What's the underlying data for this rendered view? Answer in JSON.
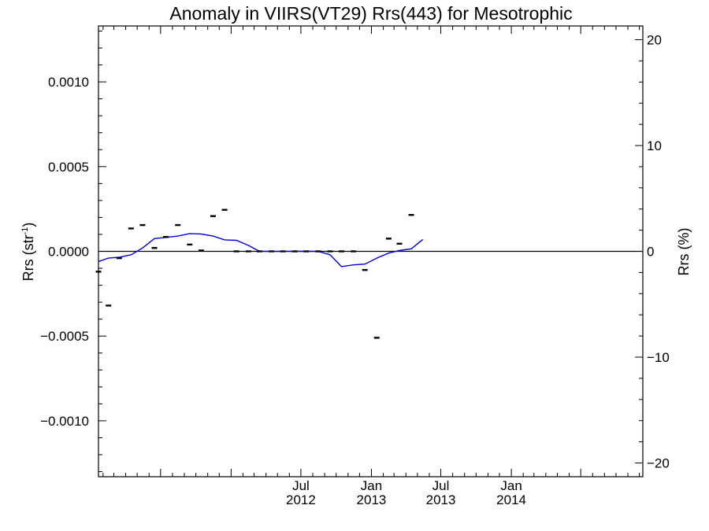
{
  "chart_data": {
    "type": "line",
    "title": "Anomaly in VIIRS(VT29) Rrs(443) for Mesotrophic",
    "ylabel": "Rrs (str",
    "ylabel_sup": "-1",
    "ylabel_end": ")",
    "y2label": "Rrs (%)",
    "xlim": [
      "2011-01-20",
      "2014-12-10"
    ],
    "ylim": [
      -0.00133,
      0.00133
    ],
    "y2lim": [
      -21.3,
      21.3
    ],
    "yticks": [
      {
        "value": 0.001,
        "label": "0.0010"
      },
      {
        "value": 0.0005,
        "label": "0.0005"
      },
      {
        "value": 0,
        "label": "0.0000"
      },
      {
        "value": -0.0005,
        "label": "−0.0005"
      },
      {
        "value": -0.001,
        "label": "−0.0010"
      }
    ],
    "y2ticks": [
      {
        "value": 20,
        "label": "20"
      },
      {
        "value": 10,
        "label": "10"
      },
      {
        "value": 0,
        "label": "0"
      },
      {
        "value": -10,
        "label": "−10"
      },
      {
        "value": -20,
        "label": "−20"
      }
    ],
    "xticks": [
      {
        "date": "2012-07-01",
        "month": "Jul",
        "year": "2012"
      },
      {
        "date": "2013-01-01",
        "month": "Jan",
        "year": "2013"
      },
      {
        "date": "2013-07-01",
        "month": "Jul",
        "year": "2013"
      },
      {
        "date": "2014-01-01",
        "month": "Jan",
        "year": "2014"
      }
    ],
    "zero_line": true,
    "grid": false,
    "series": [
      {
        "style": "line",
        "color": "#0000dd",
        "points": [
          {
            "x": "2011-01-20",
            "y": -6e-05
          },
          {
            "x": "2011-02-15",
            "y": -4e-05
          },
          {
            "x": "2011-03-15",
            "y": -3.5e-05
          },
          {
            "x": "2011-04-15",
            "y": -2e-05
          },
          {
            "x": "2011-05-15",
            "y": 2e-05
          },
          {
            "x": "2011-06-15",
            "y": 7.5e-05
          },
          {
            "x": "2011-07-15",
            "y": 8.2e-05
          },
          {
            "x": "2011-08-15",
            "y": 9e-05
          },
          {
            "x": "2011-09-15",
            "y": 0.000105
          },
          {
            "x": "2011-10-15",
            "y": 0.000102
          },
          {
            "x": "2011-11-15",
            "y": 9e-05
          },
          {
            "x": "2011-12-15",
            "y": 6.8e-05
          },
          {
            "x": "2012-01-15",
            "y": 6.5e-05
          },
          {
            "x": "2012-02-15",
            "y": 3.5e-05
          },
          {
            "x": "2012-03-15",
            "y": 0
          },
          {
            "x": "2012-04-15",
            "y": 0
          },
          {
            "x": "2012-05-15",
            "y": 0
          },
          {
            "x": "2012-06-15",
            "y": 0
          },
          {
            "x": "2012-07-15",
            "y": 0
          },
          {
            "x": "2012-08-15",
            "y": 0
          },
          {
            "x": "2012-09-15",
            "y": -2e-05
          },
          {
            "x": "2012-10-15",
            "y": -9e-05
          },
          {
            "x": "2012-11-15",
            "y": -8e-05
          },
          {
            "x": "2012-12-15",
            "y": -7.5e-05
          },
          {
            "x": "2013-01-15",
            "y": -4e-05
          },
          {
            "x": "2013-02-15",
            "y": -1e-05
          },
          {
            "x": "2013-03-15",
            "y": 5e-06
          },
          {
            "x": "2013-04-15",
            "y": 1.5e-05
          },
          {
            "x": "2013-05-15",
            "y": 7e-05
          }
        ]
      },
      {
        "style": "marker",
        "color": "#000000",
        "points": [
          {
            "x": "2011-01-20",
            "y": -0.00012
          },
          {
            "x": "2011-02-15",
            "y": -0.00032
          },
          {
            "x": "2011-03-15",
            "y": -4e-05
          },
          {
            "x": "2011-04-15",
            "y": 0.000135
          },
          {
            "x": "2011-05-15",
            "y": 0.000155
          },
          {
            "x": "2011-06-15",
            "y": 2e-05
          },
          {
            "x": "2011-07-15",
            "y": 8.5e-05
          },
          {
            "x": "2011-08-15",
            "y": 0.000155
          },
          {
            "x": "2011-09-15",
            "y": 4e-05
          },
          {
            "x": "2011-10-15",
            "y": 5e-06
          },
          {
            "x": "2011-11-15",
            "y": 0.000208
          },
          {
            "x": "2011-12-15",
            "y": 0.000245
          },
          {
            "x": "2012-01-15",
            "y": 0
          },
          {
            "x": "2012-02-15",
            "y": 0
          },
          {
            "x": "2012-03-15",
            "y": 0
          },
          {
            "x": "2012-04-15",
            "y": 0
          },
          {
            "x": "2012-05-15",
            "y": 0
          },
          {
            "x": "2012-06-15",
            "y": 0
          },
          {
            "x": "2012-07-15",
            "y": 0
          },
          {
            "x": "2012-08-15",
            "y": 0
          },
          {
            "x": "2012-09-15",
            "y": 0
          },
          {
            "x": "2012-10-15",
            "y": 0
          },
          {
            "x": "2012-11-15",
            "y": 0
          },
          {
            "x": "2012-12-15",
            "y": -0.00011
          },
          {
            "x": "2013-01-15",
            "y": -0.00051
          },
          {
            "x": "2013-02-15",
            "y": 7.5e-05
          },
          {
            "x": "2013-03-15",
            "y": 4.5e-05
          },
          {
            "x": "2013-04-15",
            "y": 0.000215
          }
        ]
      }
    ]
  }
}
